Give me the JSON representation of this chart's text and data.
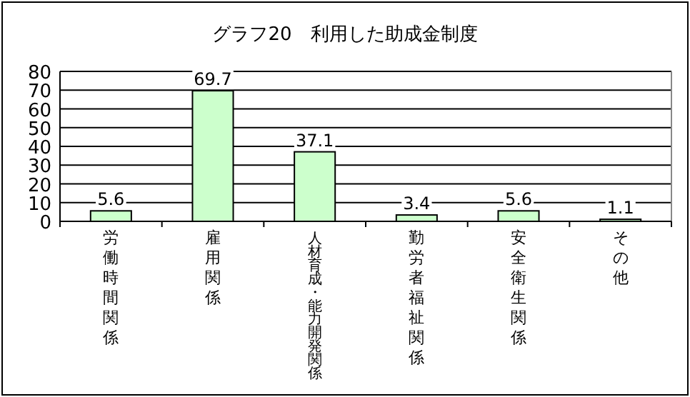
{
  "chart_data": {
    "type": "bar",
    "title": "グラフ20　利用した助成金制度",
    "categories": [
      "労働時間関係",
      "雇用関係",
      "人材育成・能力開発関係",
      "勤労者福祉関係",
      "安全衛生関係",
      "その他"
    ],
    "values": [
      5.6,
      69.7,
      37.1,
      3.4,
      5.6,
      1.1
    ],
    "color": "#ccffcc",
    "ylim": [
      0,
      80
    ],
    "yticks": [
      0,
      10,
      20,
      30,
      40,
      50,
      60,
      70,
      80
    ],
    "grid": "y",
    "data_labels": true
  }
}
